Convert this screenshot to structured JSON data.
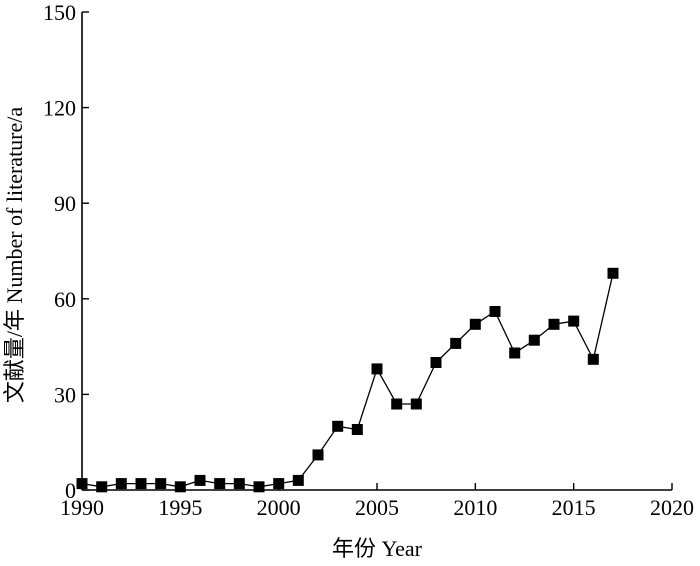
{
  "chart_data": {
    "type": "line",
    "title": "",
    "xlabel": "年份 Year",
    "ylabel": "文献量/年 Number of literature/a",
    "xlim": [
      1990,
      2020
    ],
    "ylim": [
      0,
      150
    ],
    "xticks": [
      1990,
      1995,
      2000,
      2005,
      2010,
      2015,
      2020
    ],
    "yticks": [
      0,
      30,
      60,
      90,
      120,
      150
    ],
    "grid": false,
    "legend": "none",
    "marker": "filled-square",
    "line_color": "#000000",
    "series": [
      {
        "x": [
          1990,
          1991,
          1992,
          1993,
          1994,
          1995,
          1996,
          1997,
          1998,
          1999,
          2000,
          2001,
          2002,
          2003,
          2004,
          2005,
          2006,
          2007,
          2008,
          2009,
          2010,
          2011,
          2012,
          2013,
          2014,
          2015,
          2016,
          2017
        ],
        "y": [
          2,
          1,
          2,
          2,
          2,
          1,
          3,
          2,
          2,
          1,
          2,
          3,
          11,
          20,
          19,
          38,
          27,
          27,
          40,
          46,
          52,
          56,
          43,
          47,
          52,
          53,
          41,
          68
        ],
        "x_extra_note": ""
      }
    ]
  }
}
